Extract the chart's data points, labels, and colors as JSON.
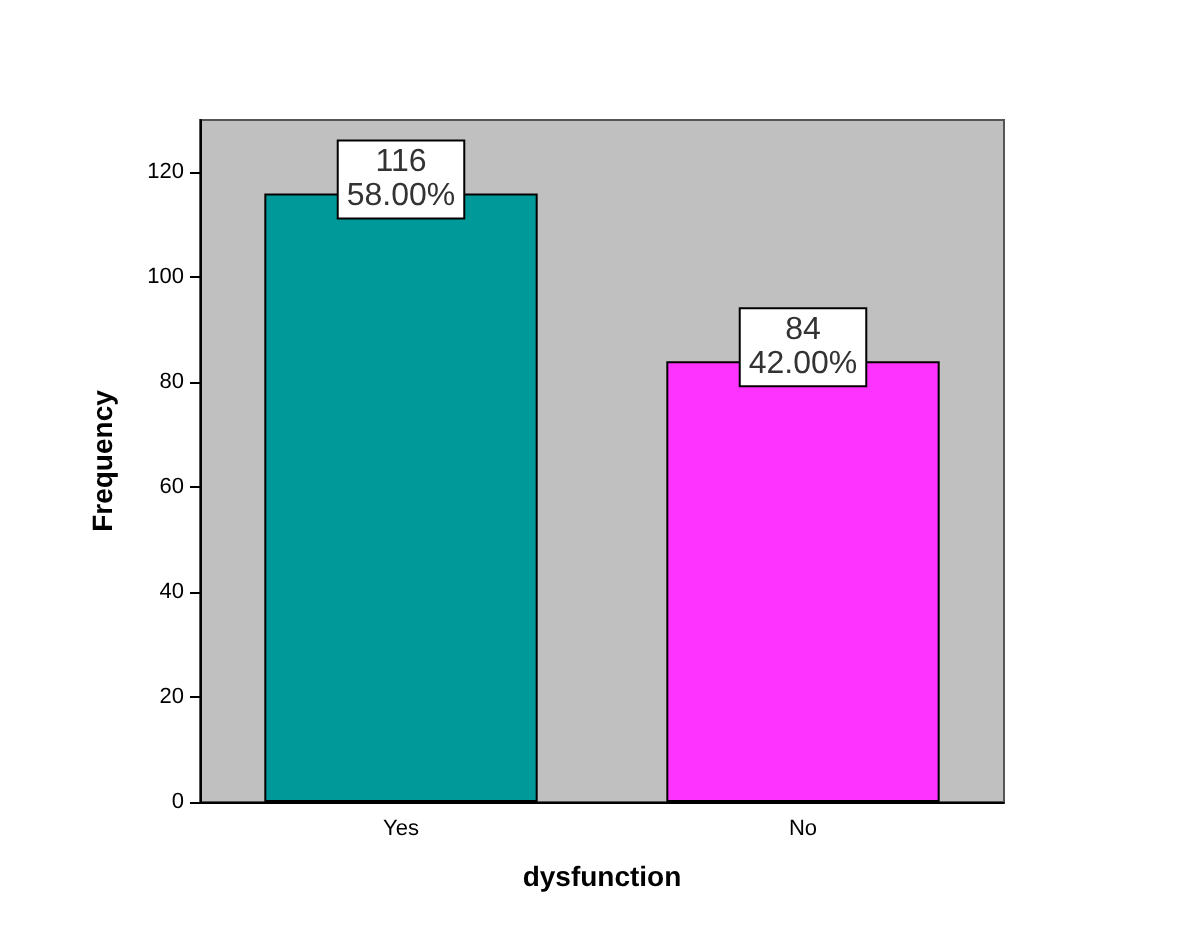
{
  "chart_data": {
    "type": "bar",
    "xlabel": "dysfunction",
    "ylabel": "Frequency",
    "categories": [
      "Yes",
      "No"
    ],
    "values": [
      116,
      84
    ],
    "colors": [
      "#009999",
      "#ff33ff"
    ],
    "value_labels": [
      "116\n58.00%",
      "84\n42.00%"
    ],
    "ylim": [
      0,
      130
    ],
    "yticks": [
      0,
      20,
      40,
      60,
      80,
      100,
      120
    ],
    "grid": false
  }
}
